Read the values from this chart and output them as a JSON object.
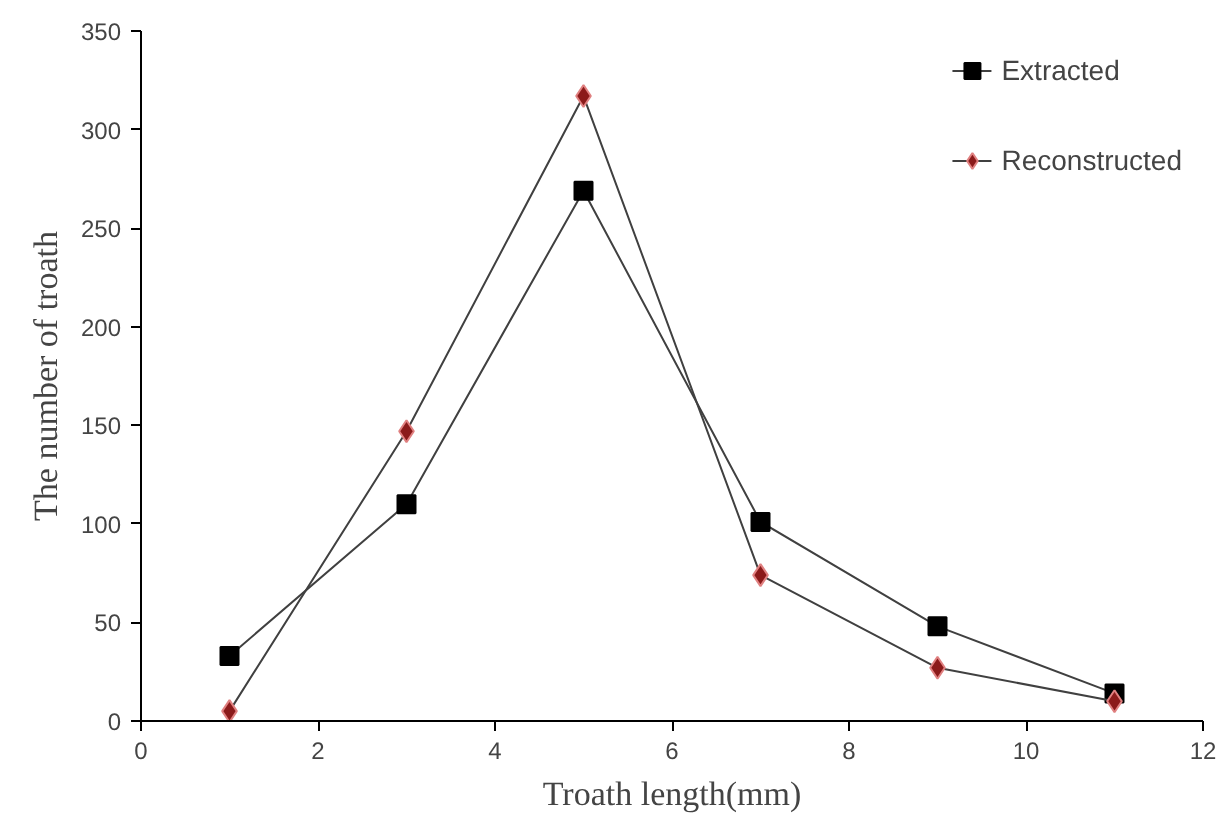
{
  "chart_data": {
    "type": "line",
    "xlabel": "Troath length(mm)",
    "ylabel": "The number of troath",
    "x": [
      1,
      3,
      5,
      7,
      9,
      11
    ],
    "series": [
      {
        "name": "Extracted",
        "color": "#000000",
        "marker": "square",
        "values": [
          33,
          110,
          269,
          101,
          48,
          14
        ]
      },
      {
        "name": "Reconstructed",
        "color": "#8b1a1a",
        "marker": "diamond",
        "values": [
          5,
          147,
          317,
          74,
          27,
          10
        ]
      }
    ],
    "xlim": [
      0,
      12
    ],
    "xticks": [
      0,
      2,
      4,
      6,
      8,
      10,
      12
    ],
    "ylim": [
      0,
      350
    ],
    "yticks": [
      0,
      50,
      100,
      150,
      200,
      250,
      300,
      350
    ],
    "grid": false,
    "legend": "top right",
    "line_style": "solid"
  }
}
